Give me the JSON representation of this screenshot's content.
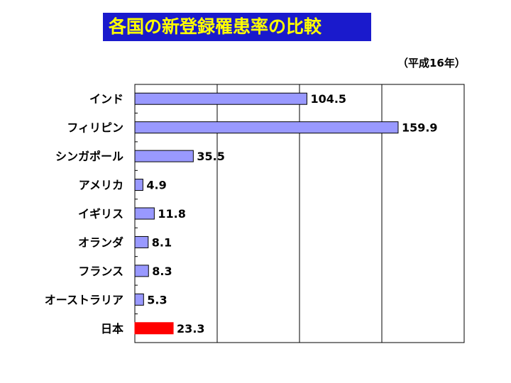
{
  "header": {
    "title": "各国の新登録罹患率の比較",
    "subtitle": "（平成16年）"
  },
  "chart_data": {
    "type": "bar",
    "orientation": "horizontal",
    "title": "各国の新登録罹患率の比較",
    "subtitle": "（平成16年）",
    "categories": [
      "インド",
      "フィリピン",
      "シンガポール",
      "アメリカ",
      "イギリス",
      "オランダ",
      "フランス",
      "オーストラリア",
      "日本"
    ],
    "values": [
      104.5,
      159.9,
      35.5,
      4.9,
      11.8,
      8.1,
      8.3,
      5.3,
      23.3
    ],
    "data_labels": [
      "104.5",
      "159.9",
      "35.5",
      "4.9",
      "11.8",
      "8.1",
      "8.3",
      "5.3",
      "23.3"
    ],
    "xlim": [
      0,
      200
    ],
    "grid": true,
    "colors": {
      "default": "#9999ff",
      "highlight": "#ff0000",
      "border": "#000000"
    },
    "highlight_index": 8
  }
}
